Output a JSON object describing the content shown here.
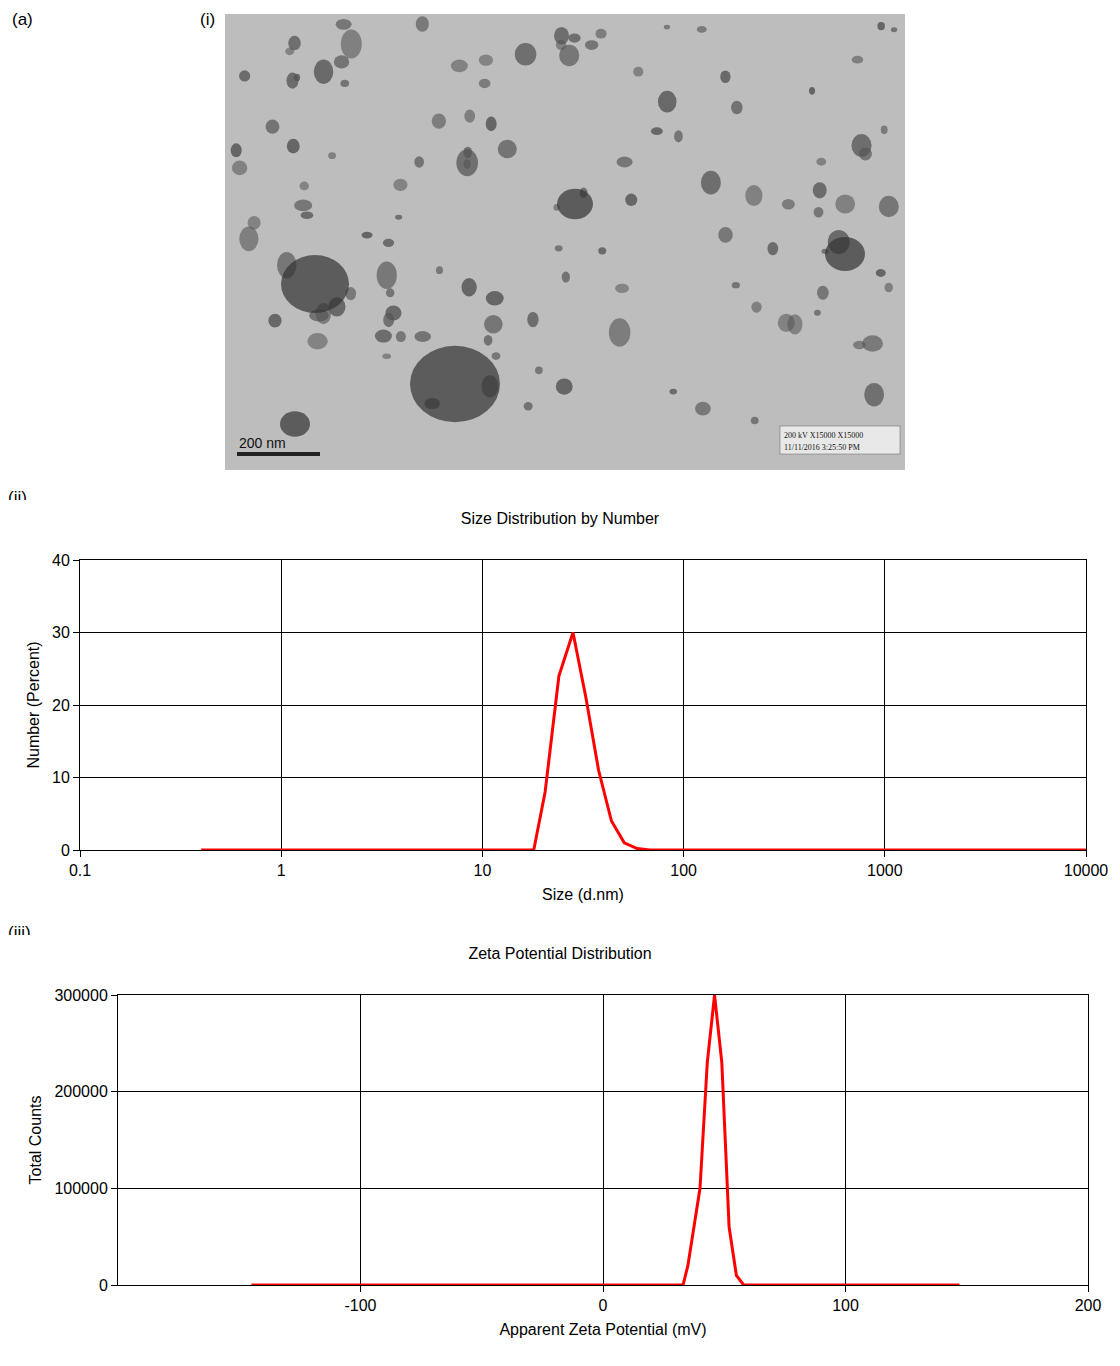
{
  "panel_label": "(a)",
  "image": {
    "label": "(i)",
    "scale_bar": "200 nm",
    "stamp": [
      "200 kV    X15000    X15000",
      "11/11/2016  3:25:50 PM"
    ]
  },
  "chart_data": [
    {
      "label": "(ii)",
      "type": "line",
      "title": "Size Distribution by Number",
      "x_label": "Size (d.nm)",
      "y_label": "Number (Percent)",
      "x": [
        0.4,
        18,
        20.5,
        24,
        28.2,
        32.7,
        37.8,
        43.8,
        50.7,
        58.8,
        68,
        10000
      ],
      "values": [
        0,
        0,
        8,
        24,
        30,
        21,
        11,
        4,
        1,
        0.2,
        0,
        0
      ],
      "color": "#ff0000",
      "log": "x",
      "xlim": [
        0.1,
        10000
      ],
      "xticks": [
        0.1,
        1,
        10,
        100,
        1000,
        10000
      ],
      "ylim": [
        0,
        40
      ],
      "yticks": [
        0,
        10,
        20,
        30,
        40
      ],
      "grid": true
    },
    {
      "label": "(iii)",
      "type": "line",
      "title": "Zeta Potential Distribution",
      "x_label": "Apparent Zeta Potential (mV)",
      "y_label": "Total Counts",
      "x": [
        -145,
        33,
        35,
        40,
        43,
        46,
        49,
        52,
        55,
        58,
        147
      ],
      "values": [
        0,
        0,
        20000,
        100000,
        230000,
        300000,
        230000,
        60000,
        10000,
        0,
        0
      ],
      "color": "#ff0000",
      "xlim": [
        -200,
        200
      ],
      "xticks": [
        -100,
        0,
        100,
        200
      ],
      "ylim": [
        0,
        300000
      ],
      "yticks": [
        0,
        100000,
        200000,
        300000
      ],
      "grid": true
    }
  ]
}
